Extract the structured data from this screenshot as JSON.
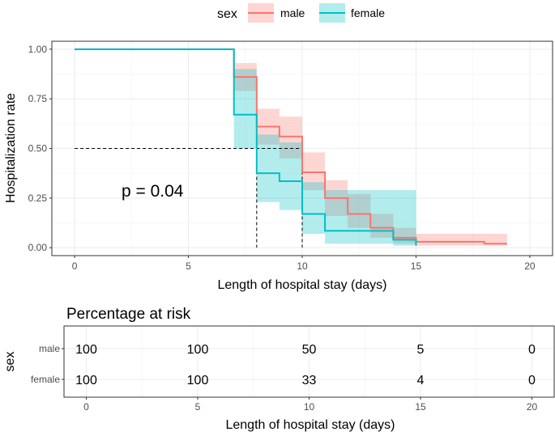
{
  "legend": {
    "title": "sex",
    "entries": [
      {
        "name": "male",
        "color": "#F8766D",
        "fill": "#F8766D"
      },
      {
        "name": "female",
        "color": "#00BFC4",
        "fill": "#00BFC4"
      }
    ]
  },
  "chart_data": [
    {
      "type": "step",
      "title": "",
      "xlabel": "Length of hospital stay (days)",
      "ylabel": "Hospitalization rate",
      "xlim": [
        -1,
        21
      ],
      "ylim": [
        -0.04,
        1.04
      ],
      "xticks": [
        0,
        5,
        10,
        15,
        20
      ],
      "yticks": [
        0.0,
        0.25,
        0.5,
        0.75,
        1.0
      ],
      "ytick_labels": [
        "0.00",
        "0.25",
        "0.50",
        "0.75",
        "1.00"
      ],
      "grid": true,
      "annotation": "p = 0.04",
      "median_reference": {
        "y": 0.5,
        "x_values": [
          8,
          10
        ]
      },
      "series": [
        {
          "name": "male",
          "color": "#F8766D",
          "times": [
            0,
            7,
            8,
            9,
            10,
            11,
            12,
            13,
            14,
            15,
            18,
            19
          ],
          "surv": [
            1.0,
            0.86,
            0.61,
            0.56,
            0.38,
            0.25,
            0.17,
            0.1,
            0.05,
            0.03,
            0.02,
            0.02
          ],
          "lower": [
            1.0,
            0.79,
            0.52,
            0.45,
            0.29,
            0.16,
            0.1,
            0.05,
            0.02,
            0.01,
            0.01,
            0.01
          ],
          "upper": [
            1.0,
            0.93,
            0.7,
            0.66,
            0.48,
            0.34,
            0.27,
            0.17,
            0.1,
            0.07,
            0.07,
            0.07
          ]
        },
        {
          "name": "female",
          "color": "#00BFC4",
          "times": [
            0,
            7,
            8,
            9,
            10,
            11,
            14,
            15
          ],
          "surv": [
            1.0,
            0.67,
            0.375,
            0.335,
            0.17,
            0.085,
            0.04,
            0.01
          ],
          "lower": [
            1.0,
            0.5,
            0.23,
            0.19,
            0.07,
            0.02,
            0.01,
            0.0
          ],
          "upper": [
            1.0,
            0.9,
            0.57,
            0.53,
            0.33,
            0.29,
            0.29,
            0.29
          ]
        }
      ]
    },
    {
      "type": "table",
      "title": "Percentage at risk",
      "xlabel": "Length of hospital stay (days)",
      "ylabel": "sex",
      "xlim": [
        -1,
        21
      ],
      "xticks": [
        0,
        5,
        10,
        15,
        20
      ],
      "columns": [
        0,
        5,
        10,
        15,
        20
      ],
      "rows": [
        {
          "name": "male",
          "values": [
            "100",
            "100",
            "50",
            "5",
            "0"
          ]
        },
        {
          "name": "female",
          "values": [
            "100",
            "100",
            "33",
            "4",
            "0"
          ]
        }
      ]
    }
  ]
}
